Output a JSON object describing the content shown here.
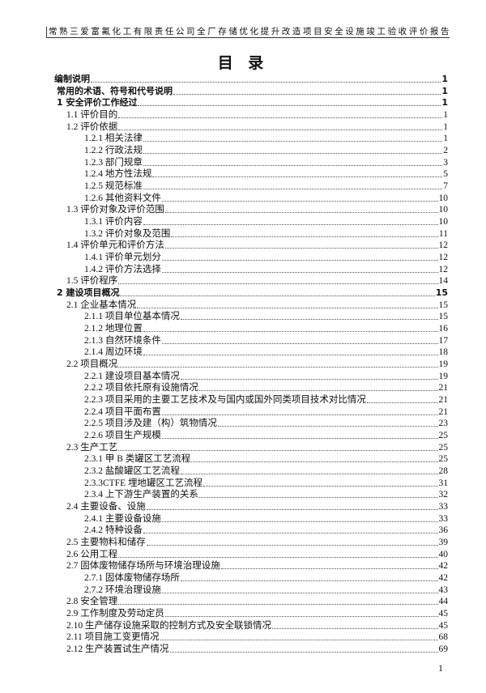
{
  "header": "常熟三爱富氟化工有限责任公司全厂存储优化提升改造项目安全设施竣工验收评价报告",
  "title": "目 录",
  "entries": [
    {
      "text": "编制说明",
      "page": "1",
      "level": 0,
      "bold": true
    },
    {
      "text": "常用的术语、符号和代号说明",
      "page": "1",
      "level": 0.2,
      "bold": true
    },
    {
      "text": "1 安全评价工作经过",
      "page": "1",
      "level": 0.2,
      "bold": true
    },
    {
      "text": "1.1 评价目的",
      "page": "1",
      "level": 1
    },
    {
      "text": "1.2 评价依据",
      "page": "1",
      "level": 1
    },
    {
      "text": "1.2.1 相关法律",
      "page": "1",
      "level": 2
    },
    {
      "text": "1.2.2 行政法规",
      "page": "2",
      "level": 2
    },
    {
      "text": "1.2.3 部门规章",
      "page": "3",
      "level": 2
    },
    {
      "text": "1.2.4 地方性法规",
      "page": "5",
      "level": 2
    },
    {
      "text": "1.2.5 规范标准",
      "page": "7",
      "level": 2
    },
    {
      "text": "1.2.6 其他资料文件",
      "page": "10",
      "level": 2
    },
    {
      "text": "1.3 评价对象及评价范围",
      "page": "10",
      "level": 1
    },
    {
      "text": "1.3.1 评价内容",
      "page": "10",
      "level": 2
    },
    {
      "text": "1.3.2 评价对象及范围",
      "page": "11",
      "level": 2
    },
    {
      "text": "1.4 评价单元和评价方法",
      "page": "12",
      "level": 1
    },
    {
      "text": "1.4.1 评价单元划分",
      "page": "12",
      "level": 2
    },
    {
      "text": "1.4.2 评价方法选择",
      "page": "12",
      "level": 2
    },
    {
      "text": "1.5 评价程序",
      "page": "14",
      "level": 1
    },
    {
      "text": "2 建设项目概况",
      "page": "15",
      "level": 0.2,
      "bold": true
    },
    {
      "text": "2.1 企业基本情况",
      "page": "15",
      "level": 1
    },
    {
      "text": "2.1.1 项目单位基本情况",
      "page": "15",
      "level": 2
    },
    {
      "text": "2.1.2 地理位置",
      "page": "16",
      "level": 2
    },
    {
      "text": "2.1.3 自然环境条件",
      "page": "17",
      "level": 2
    },
    {
      "text": "2.1.4 周边环境",
      "page": "18",
      "level": 2
    },
    {
      "text": "2.2 项目概况",
      "page": "19",
      "level": 1
    },
    {
      "text": "2.2.1 建设项目基本情况",
      "page": "19",
      "level": 2
    },
    {
      "text": "2.2.2 项目依托原有设施情况",
      "page": "21",
      "level": 2
    },
    {
      "text": "2.2.3 项目采用的主要工艺技术及与国内或国外同类项目技术对比情况",
      "page": "21",
      "level": 2
    },
    {
      "text": "2.2.4 项目平面布置",
      "page": "21",
      "level": 2
    },
    {
      "text": "2.2.5 项目涉及建（构）筑物情况",
      "page": "23",
      "level": 2
    },
    {
      "text": "2.2.6 项目生产规模",
      "page": "25",
      "level": 2
    },
    {
      "text": "2.3 生产工艺",
      "page": "25",
      "level": 1
    },
    {
      "text": "2.3.1 甲 B 类罐区工艺流程",
      "page": "25",
      "level": 2
    },
    {
      "text": "2.3.2 盐酸罐区工艺流程",
      "page": "28",
      "level": 2
    },
    {
      "text": "2.3.3CTFE 埋地罐区工艺流程",
      "page": "31",
      "level": 2
    },
    {
      "text": "2.3.4 上下游生产装置的关系",
      "page": "32",
      "level": 2
    },
    {
      "text": "2.4 主要设备、设施",
      "page": "33",
      "level": 1
    },
    {
      "text": "2.4.1 主要设备设施",
      "page": "33",
      "level": 2
    },
    {
      "text": "2.4.2 特种设备",
      "page": "36",
      "level": 2
    },
    {
      "text": "2.5 主要物料和储存",
      "page": "39",
      "level": 1
    },
    {
      "text": "2.6 公用工程",
      "page": "40",
      "level": 1
    },
    {
      "text": "2.7 固体废物储存场所与环境治理设施",
      "page": "42",
      "level": 1
    },
    {
      "text": "2.7.1 固体废物储存场所",
      "page": "42",
      "level": 2
    },
    {
      "text": "2.7.2 环境治理设施",
      "page": "43",
      "level": 2
    },
    {
      "text": "2.8 安全管理",
      "page": "44",
      "level": 1
    },
    {
      "text": "2.9 工作制度及劳动定员",
      "page": "45",
      "level": 1
    },
    {
      "text": "2.10 生产储存设施采取的控制方式及安全联锁情况",
      "page": "45",
      "level": 1
    },
    {
      "text": "2.11 项目施工变更情况",
      "page": "68",
      "level": 1
    },
    {
      "text": "2.12 生产装置试生产情况",
      "page": "69",
      "level": 1
    }
  ],
  "page_number": "1"
}
